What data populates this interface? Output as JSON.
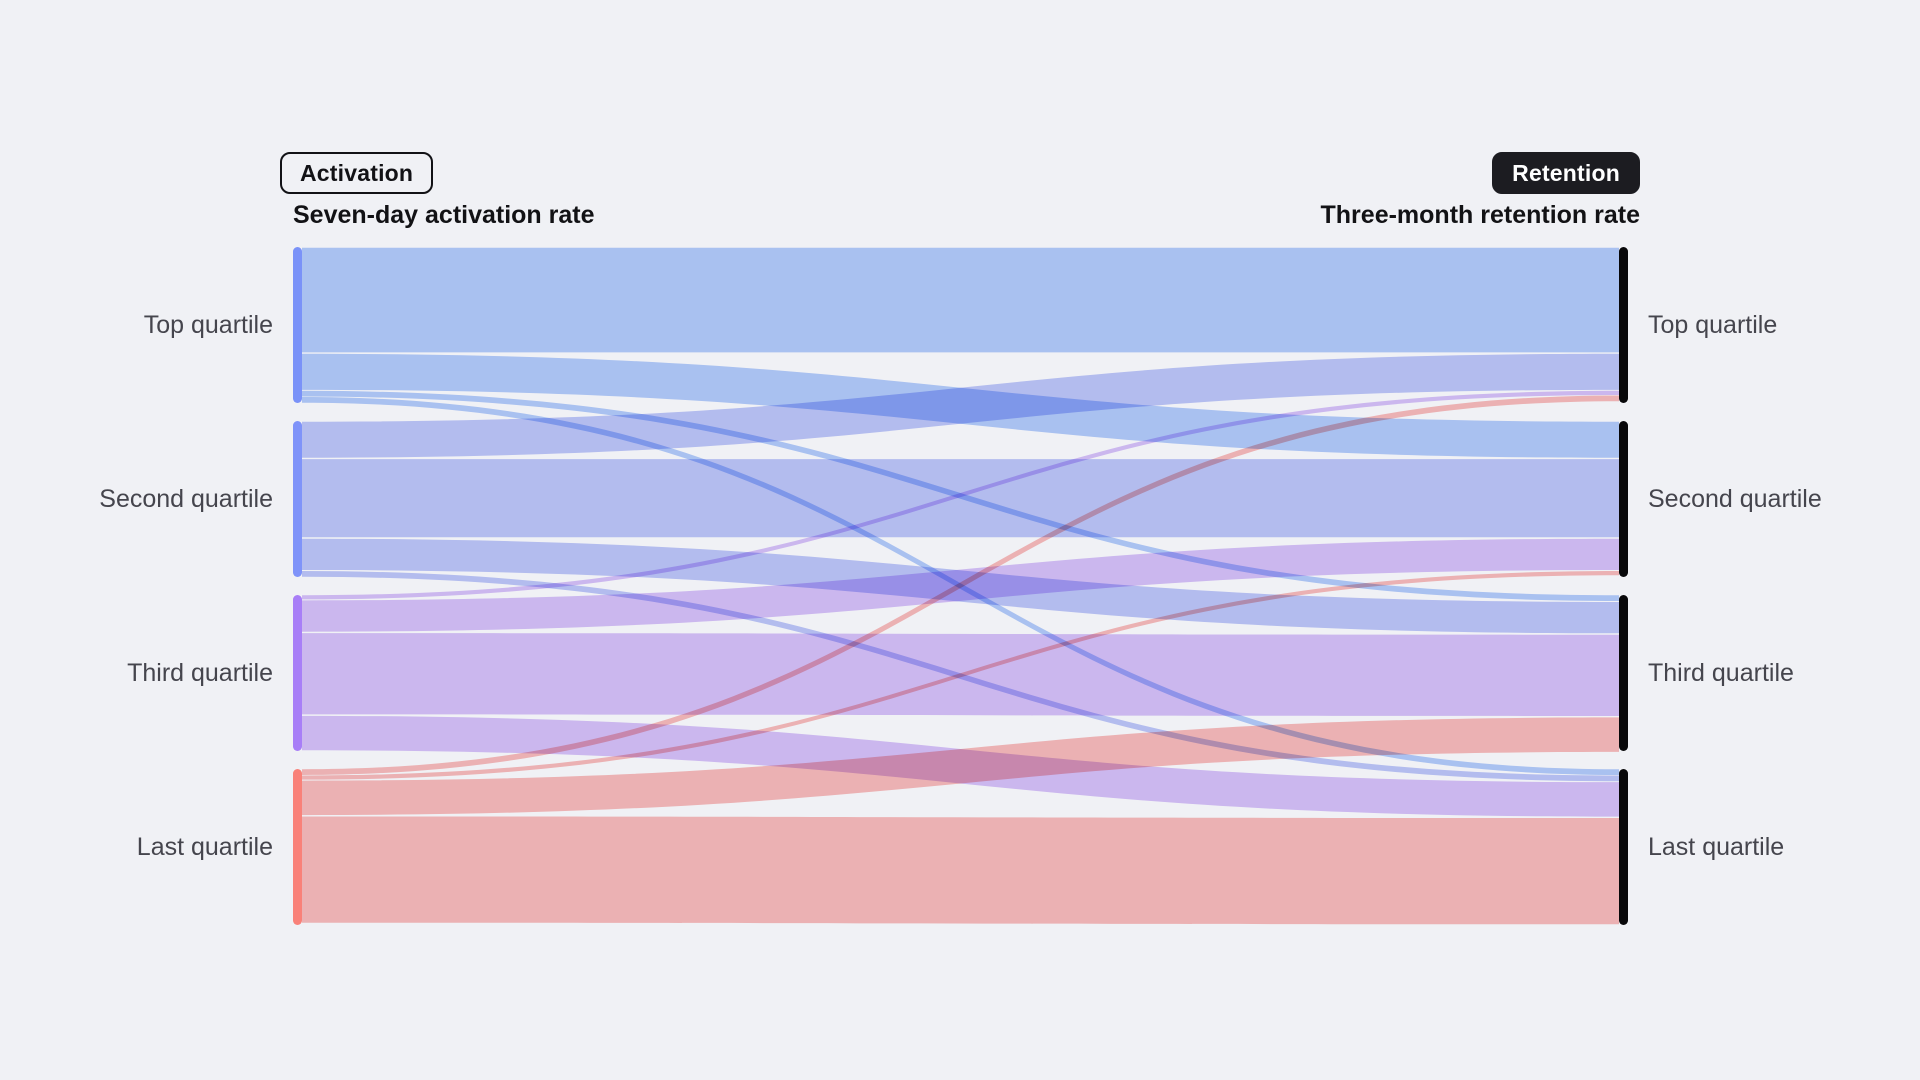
{
  "page": {
    "background": "#f0f1f5"
  },
  "toolbar": {
    "activation_label": "Activation",
    "retention_label": "Retention"
  },
  "chart_data": {
    "type": "sankey",
    "left_title": "Seven-day activation rate",
    "right_title": "Three-month retention rate",
    "left_nodes": [
      "Top quartile",
      "Second quartile",
      "Third quartile",
      "Last quartile"
    ],
    "right_nodes": [
      "Top quartile",
      "Second quartile",
      "Third quartile",
      "Last quartile"
    ],
    "values_unit": "percent_of_source_node",
    "links_pct_of_source": [
      [
        68,
        24,
        4,
        4
      ],
      [
        24,
        51,
        21,
        4
      ],
      [
        3,
        21,
        53,
        23
      ],
      [
        4,
        3,
        23,
        69
      ]
    ],
    "node_colors": [
      "#7a92f8",
      "#7f93f9",
      "#a87ef7",
      "#f98179"
    ],
    "flow_colors": [
      "#b4ccfa",
      "#bec7f8",
      "#d8c2f8",
      "#fabcba"
    ],
    "right_node_color": "#08080a",
    "legend_position": "none",
    "grid": false
  }
}
